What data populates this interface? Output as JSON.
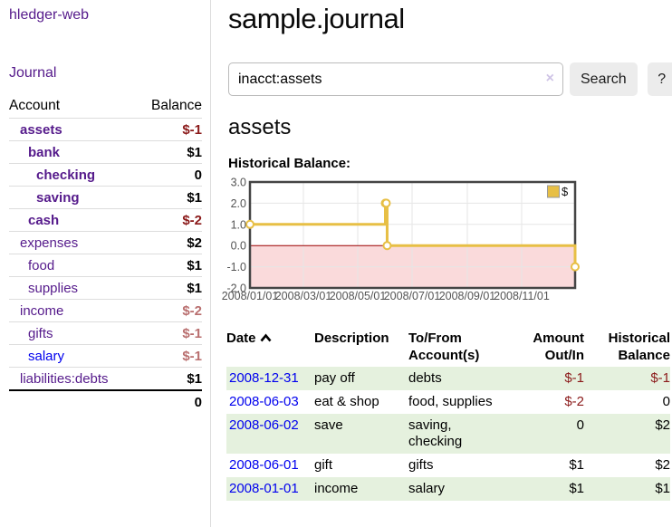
{
  "sidebar": {
    "brand": "hledger-web",
    "nav": {
      "journal": "Journal"
    },
    "table": {
      "headers": {
        "account": "Account",
        "balance": "Balance"
      },
      "accounts": [
        {
          "name": "assets",
          "balance": "$-1",
          "depth": 1,
          "in_filter": true,
          "balance_tone": "negative-strong"
        },
        {
          "name": "bank",
          "balance": "$1",
          "depth": 2,
          "in_filter": true,
          "balance_tone": "normal"
        },
        {
          "name": "checking",
          "balance": "0",
          "depth": 3,
          "in_filter": true,
          "balance_tone": "normal"
        },
        {
          "name": "saving",
          "balance": "$1",
          "depth": 3,
          "in_filter": true,
          "balance_tone": "normal"
        },
        {
          "name": "cash",
          "balance": "$-2",
          "depth": 2,
          "in_filter": true,
          "balance_tone": "negative-strong"
        },
        {
          "name": "expenses",
          "balance": "$2",
          "depth": 1,
          "in_filter": false,
          "balance_tone": "normal"
        },
        {
          "name": "food",
          "balance": "$1",
          "depth": 2,
          "in_filter": false,
          "balance_tone": "normal"
        },
        {
          "name": "supplies",
          "balance": "$1",
          "depth": 2,
          "in_filter": false,
          "balance_tone": "normal"
        },
        {
          "name": "income",
          "balance": "$-2",
          "depth": 1,
          "in_filter": false,
          "balance_tone": "negative-muted"
        },
        {
          "name": "gifts",
          "balance": "$-1",
          "depth": 2,
          "in_filter": false,
          "balance_tone": "negative-muted"
        },
        {
          "name": "salary",
          "balance": "$-1",
          "depth": 2,
          "in_filter": false,
          "balance_tone": "negative-muted"
        },
        {
          "name": "liabilities:debts",
          "balance": "$1",
          "depth": 1,
          "in_filter": false,
          "balance_tone": "normal"
        }
      ],
      "total": "0"
    }
  },
  "main": {
    "title": "sample.journal",
    "search": {
      "value": "inacct:assets",
      "placeholder": "",
      "clear_icon": "×",
      "button": "Search",
      "help_button": "?"
    },
    "account_heading": "assets",
    "chart_label": "Historical Balance:",
    "transactions": {
      "sort": {
        "column": "date",
        "direction": "ascending"
      },
      "headers": {
        "date": "Date",
        "description": "Description",
        "accounts": "To/From Account(s)",
        "amount": "Amount Out/In",
        "balance": "Historical Balance"
      },
      "rows": [
        {
          "date": "2008-12-31",
          "description": "pay off",
          "accounts": "debts",
          "amount": "$-1",
          "balance": "$-1"
        },
        {
          "date": "2008-06-03",
          "description": "eat & shop",
          "accounts": "food, supplies",
          "amount": "$-2",
          "balance": "0"
        },
        {
          "date": "2008-06-02",
          "description": "save",
          "accounts": "saving, checking",
          "amount": "0",
          "balance": "$2"
        },
        {
          "date": "2008-06-01",
          "description": "gift",
          "accounts": "gifts",
          "amount": "$1",
          "balance": "$2"
        },
        {
          "date": "2008-01-01",
          "description": "income",
          "accounts": "salary",
          "amount": "$1",
          "balance": "$1"
        }
      ]
    }
  },
  "chart_data": {
    "type": "line",
    "step": true,
    "title": "Historical Balance",
    "series": [
      {
        "name": "$",
        "color": "#e7bf45",
        "points": [
          [
            "2008-01-01",
            1
          ],
          [
            "2008-06-01",
            2
          ],
          [
            "2008-06-02",
            2
          ],
          [
            "2008-06-03",
            0
          ],
          [
            "2008-12-31",
            -1
          ]
        ]
      }
    ],
    "x_ticks": [
      "2008/01/01",
      "2008/03/01",
      "2008/05/01",
      "2008/07/01",
      "2008/09/01",
      "2008/11/01"
    ],
    "x_tick_dates": [
      "2008-01-01",
      "2008-03-01",
      "2008-05-01",
      "2008-07-01",
      "2008-09-01",
      "2008-11-01"
    ],
    "y_ticks": [
      "3.0",
      "2.0",
      "1.0",
      "0.0",
      "-1.0",
      "-2.0"
    ],
    "ylim": [
      -2,
      3
    ],
    "xlim": [
      "2008-01-01",
      "2008-12-31"
    ],
    "grid": true,
    "legend": {
      "label": "$",
      "position": "top-right"
    },
    "negative_zone_fill": "#fadadb",
    "zero_line_color": "#990000",
    "plot_border_color": "#454545",
    "grid_color": "#e6e6e6",
    "tick_text_color": "#545454"
  },
  "colors": {
    "purple_link": "#551a8b",
    "blue_link": "#0000ee",
    "negative_strong": "#8b1a1a",
    "negative_muted": "#b96f6f",
    "row_green": "#e5f1de",
    "button_bg": "#ececec",
    "divider": "#dddddd"
  }
}
